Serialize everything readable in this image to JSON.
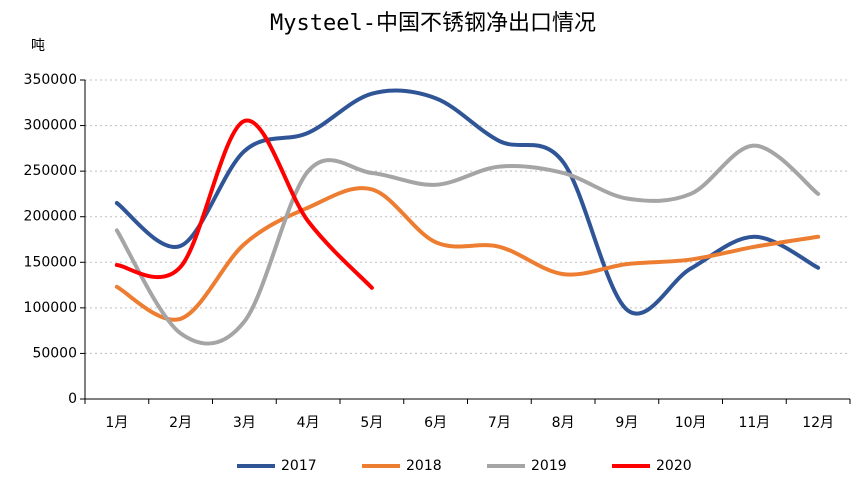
{
  "chart_data": {
    "type": "line",
    "title": "Mysteel-中国不锈钢净出口情况",
    "y_label": "吨",
    "categories": [
      "1月",
      "2月",
      "3月",
      "4月",
      "5月",
      "6月",
      "7月",
      "8月",
      "9月",
      "10月",
      "11月",
      "12月"
    ],
    "series": [
      {
        "name": "2017",
        "color": "#2f5597",
        "values": [
          215000,
          168000,
          272000,
          292000,
          335000,
          330000,
          283000,
          260000,
          98000,
          143000,
          178000,
          144000
        ]
      },
      {
        "name": "2018",
        "color": "#ed7d31",
        "values": [
          123000,
          88000,
          170000,
          210000,
          230000,
          172000,
          167000,
          137000,
          148000,
          153000,
          167000,
          178000
        ]
      },
      {
        "name": "2019",
        "color": "#a5a5a5",
        "values": [
          185000,
          72000,
          85000,
          250000,
          248000,
          235000,
          255000,
          248000,
          220000,
          225000,
          278000,
          225000
        ]
      },
      {
        "name": "2020",
        "color": "#ff0000",
        "values": [
          147000,
          145000,
          305000,
          195000,
          122000,
          null,
          null,
          null,
          null,
          null,
          null,
          null
        ]
      }
    ],
    "ylim": [
      0,
      350000
    ],
    "yticks": [
      0,
      50000,
      100000,
      150000,
      200000,
      250000,
      300000,
      350000
    ],
    "grid": true,
    "legend": "bottom"
  }
}
